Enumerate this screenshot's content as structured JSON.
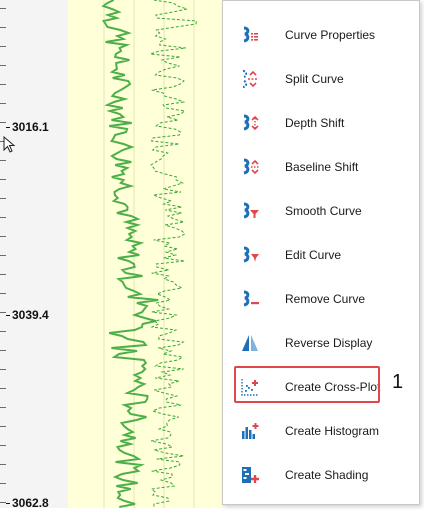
{
  "depth_track": {
    "labels": [
      "3016.1",
      "3039.4",
      "3062.8"
    ]
  },
  "menu": {
    "items": [
      {
        "label": "Curve Properties",
        "icon": "curve-properties-icon"
      },
      {
        "label": "Split Curve",
        "icon": "split-curve-icon"
      },
      {
        "label": "Depth Shift",
        "icon": "depth-shift-icon"
      },
      {
        "label": "Baseline Shift",
        "icon": "baseline-shift-icon"
      },
      {
        "label": "Smooth Curve",
        "icon": "smooth-curve-icon"
      },
      {
        "label": "Edit Curve",
        "icon": "edit-curve-icon"
      },
      {
        "label": "Remove Curve",
        "icon": "remove-curve-icon"
      },
      {
        "label": "Reverse Display",
        "icon": "reverse-display-icon"
      },
      {
        "label": "Create Cross-Plot",
        "icon": "cross-plot-icon"
      },
      {
        "label": "Create Histogram",
        "icon": "histogram-icon"
      },
      {
        "label": "Create Shading",
        "icon": "shading-icon"
      }
    ]
  },
  "annotation": {
    "callout": "1"
  },
  "colors": {
    "curve": "#3aa63a",
    "track_bg": "#ffffd8",
    "highlight": "#e0474c",
    "icon_blue": "#1e6fb8",
    "icon_red": "#e0474c"
  }
}
